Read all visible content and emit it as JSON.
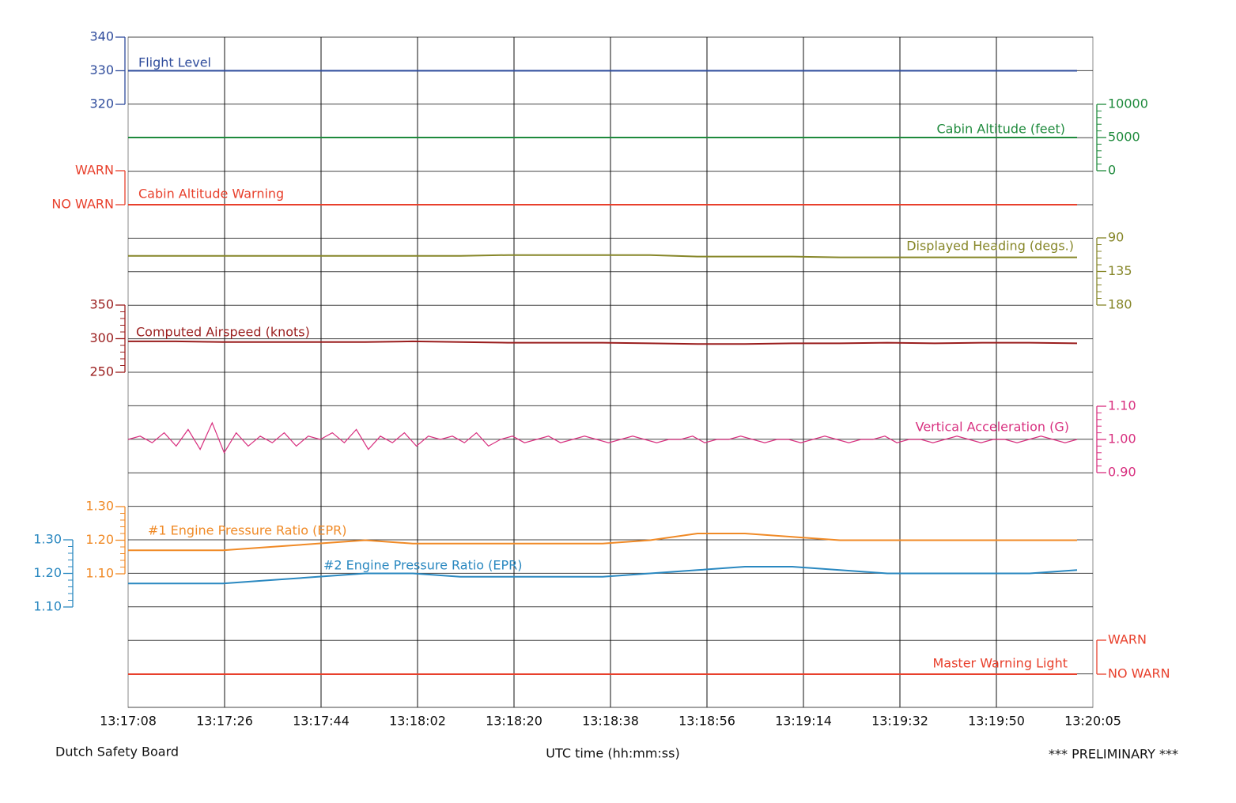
{
  "chart_data": [
    {
      "type": "line",
      "title": "Flight Level",
      "color": "#2f4c9c",
      "ylim": [
        320,
        340
      ],
      "yticks": [
        320,
        330,
        340
      ],
      "values": [
        330,
        330,
        330,
        330,
        330,
        330,
        330,
        330,
        330,
        330,
        330,
        330,
        330,
        330,
        330,
        330,
        330,
        330,
        330,
        330,
        330
      ]
    },
    {
      "type": "line",
      "title": "Cabin Altitude (feet)",
      "color": "#1e8a3c",
      "axis": "y2",
      "ylim": [
        0,
        10000
      ],
      "yticks": [
        0,
        5000,
        10000
      ],
      "values": [
        5000,
        5000,
        5000,
        5000,
        5000,
        5000,
        5000,
        5000,
        5000,
        5000,
        5000,
        5000,
        5000,
        5000,
        5000,
        5000,
        5000,
        5000,
        5000,
        5000,
        5000
      ]
    },
    {
      "type": "line",
      "title": "Cabin Altitude Warning",
      "color": "#e8402c",
      "ylim": [
        0,
        1
      ],
      "yticks": [
        {
          "value": 0,
          "label": "NO WARN"
        },
        {
          "value": 1,
          "label": "WARN"
        }
      ],
      "values": [
        0,
        0,
        0,
        0,
        0,
        0,
        0,
        0,
        0,
        0,
        0,
        0,
        0,
        0,
        0,
        0,
        0,
        0,
        0,
        0,
        0
      ]
    },
    {
      "type": "line",
      "title": "Displayed Heading (degs.)",
      "color": "#868628",
      "axis": "y2",
      "ylim": [
        180,
        90
      ],
      "yticks": [
        90,
        135,
        180
      ],
      "values": [
        114,
        114,
        114,
        114,
        114,
        114,
        114,
        114,
        113,
        113,
        113,
        113,
        115,
        115,
        115,
        116,
        116,
        116,
        116,
        116,
        116
      ]
    },
    {
      "type": "line",
      "title": "Computed Airspeed (knots)",
      "color": "#9a1d1d",
      "ylim": [
        250,
        350
      ],
      "yticks": [
        250,
        300,
        350
      ],
      "values": [
        296,
        296,
        295,
        295,
        295,
        295,
        296,
        295,
        294,
        294,
        294,
        293,
        292,
        292,
        293,
        293,
        294,
        293,
        294,
        294,
        293
      ]
    },
    {
      "type": "line",
      "title": "Vertical Acceleration (G)",
      "color": "#d8307f",
      "axis": "y2",
      "ylim": [
        0.9,
        1.1
      ],
      "yticks": [
        {
          "value": 0.9,
          "label": "0.90"
        },
        {
          "value": 1.0,
          "label": "1.00"
        },
        {
          "value": 1.1,
          "label": "1.10"
        }
      ],
      "values": [
        1.0,
        1.01,
        0.99,
        1.02,
        0.98,
        1.03,
        0.97,
        1.05,
        0.96,
        1.02,
        0.98,
        1.01,
        0.99,
        1.02,
        0.98,
        1.01,
        1.0,
        1.02,
        0.99,
        1.03,
        0.97,
        1.01,
        0.99,
        1.02,
        0.98,
        1.01,
        1.0,
        1.01,
        0.99,
        1.02,
        0.98,
        1.0,
        1.01,
        0.99,
        1.0,
        1.01,
        0.99,
        1.0,
        1.01,
        1.0,
        0.99,
        1.0,
        1.01,
        1.0,
        0.99,
        1.0,
        1.0,
        1.01,
        0.99,
        1.0,
        1.0,
        1.01,
        1.0,
        0.99,
        1.0,
        1.0,
        0.99,
        1.0,
        1.01,
        1.0,
        0.99,
        1.0,
        1.0,
        1.01,
        0.99,
        1.0,
        1.0,
        0.99,
        1.0,
        1.01,
        1.0,
        0.99,
        1.0,
        1.0,
        0.99,
        1.0,
        1.01,
        1.0,
        0.99,
        1.0
      ]
    },
    {
      "type": "line",
      "title": "#1 Engine Pressure Ratio (EPR)",
      "color": "#f08a26",
      "ylim": [
        1.1,
        1.3
      ],
      "yticks": [
        {
          "value": 1.1,
          "label": "1.10"
        },
        {
          "value": 1.2,
          "label": "1.20"
        },
        {
          "value": 1.3,
          "label": "1.30"
        }
      ],
      "values": [
        1.17,
        1.17,
        1.17,
        1.18,
        1.19,
        1.2,
        1.19,
        1.19,
        1.19,
        1.19,
        1.19,
        1.2,
        1.22,
        1.22,
        1.21,
        1.2,
        1.2,
        1.2,
        1.2,
        1.2,
        1.2
      ]
    },
    {
      "type": "line",
      "title": "#2 Engine Pressure Ratio (EPR)",
      "color": "#2a88c0",
      "ylim": [
        1.1,
        1.3
      ],
      "yticks": [
        {
          "value": 1.1,
          "label": "1.10"
        },
        {
          "value": 1.2,
          "label": "1.20"
        },
        {
          "value": 1.3,
          "label": "1.30"
        }
      ],
      "values": [
        1.17,
        1.17,
        1.17,
        1.18,
        1.19,
        1.2,
        1.2,
        1.19,
        1.19,
        1.19,
        1.19,
        1.2,
        1.21,
        1.22,
        1.22,
        1.21,
        1.2,
        1.2,
        1.2,
        1.2,
        1.21
      ]
    },
    {
      "type": "line",
      "title": "Master Warning Light",
      "color": "#e8402c",
      "axis": "y2",
      "ylim": [
        0,
        1
      ],
      "yticks": [
        {
          "value": 0,
          "label": "NO WARN"
        },
        {
          "value": 1,
          "label": "WARN"
        }
      ],
      "values": [
        0,
        0,
        0,
        0,
        0,
        0,
        0,
        0,
        0,
        0,
        0,
        0,
        0,
        0,
        0,
        0,
        0,
        0,
        0,
        0,
        0
      ]
    }
  ],
  "time_axis": {
    "label": "UTC time (hh:mm:ss)",
    "ticks": [
      "13:17:08",
      "13:17:26",
      "13:17:44",
      "13:18:02",
      "13:18:20",
      "13:18:38",
      "13:18:56",
      "13:19:14",
      "13:19:32",
      "13:19:50",
      "13:20:05"
    ]
  },
  "source": "Dutch Safety Board",
  "note": "*** PRELIMINARY ***"
}
